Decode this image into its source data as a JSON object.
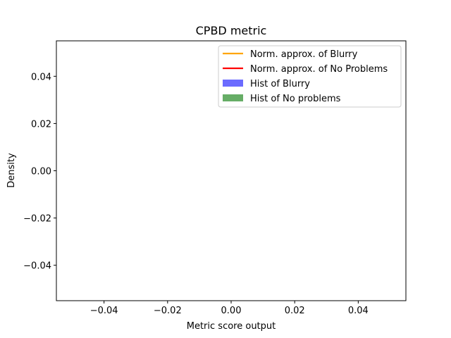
{
  "chart_data": {
    "type": "histogram",
    "title": "CPBD metric",
    "xlabel": "Metric score output",
    "ylabel": "Density",
    "xlim": [
      -0.055,
      0.055
    ],
    "ylim": [
      -0.055,
      0.055
    ],
    "x_ticks": [
      -0.04,
      -0.02,
      0.0,
      0.02,
      0.04
    ],
    "x_tick_labels": [
      "−0.04",
      "−0.02",
      "0.00",
      "0.02",
      "0.04"
    ],
    "y_ticks": [
      0.04,
      0.02,
      0.0,
      -0.02,
      -0.04
    ],
    "y_tick_labels": [
      "0.04",
      "0.02",
      "0.00",
      "−0.02",
      "−0.04"
    ],
    "grid": false,
    "legend_position": "top-right",
    "series": [
      {
        "name": "Norm. approx. of Blurry",
        "kind": "line",
        "color": "#ffa500",
        "values": []
      },
      {
        "name": "Norm. approx. of No Problems",
        "kind": "line",
        "color": "#ff0000",
        "values": []
      },
      {
        "name": "Hist of Blurry",
        "kind": "bar",
        "color": "#6b6bff",
        "values": []
      },
      {
        "name": "Hist of No problems",
        "kind": "bar",
        "color": "#66ad66",
        "values": []
      }
    ]
  }
}
